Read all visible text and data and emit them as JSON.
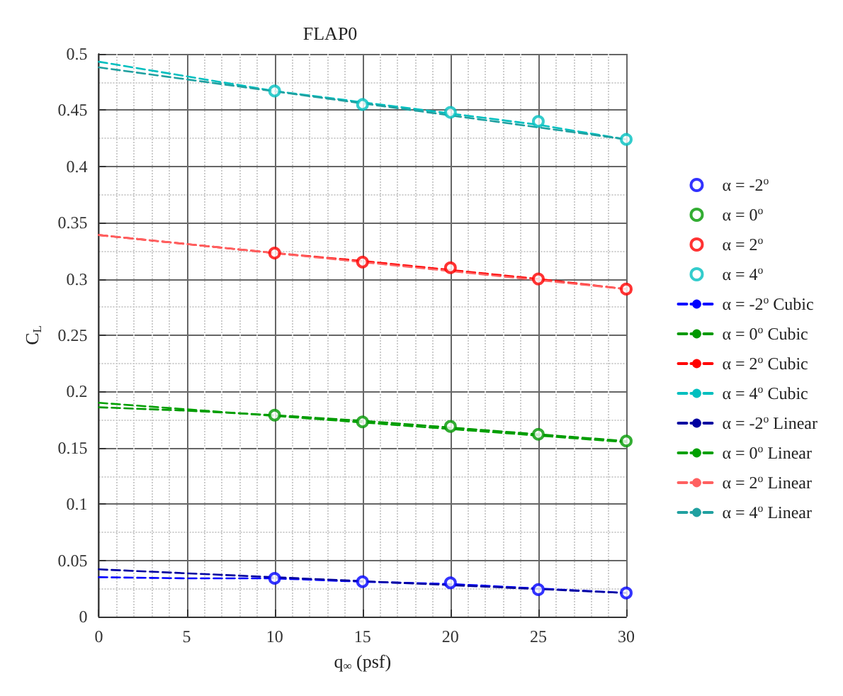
{
  "chart_data": {
    "type": "scatter",
    "title": "FLAP0",
    "xlabel": "q$_{∞}$ (psf)",
    "ylabel": "C$_{L}$",
    "xlim": [
      0,
      30
    ],
    "xticks": [
      0,
      5,
      10,
      15,
      20,
      25,
      30
    ],
    "ylim": [
      0,
      0.5
    ],
    "yticks": [
      0,
      0.05,
      0.1,
      0.15,
      0.2,
      0.25,
      0.3,
      0.35,
      0.4,
      0.45,
      0.5
    ],
    "grid": true,
    "legend": "right",
    "marker": "circle",
    "x": [
      10,
      15,
      20,
      25,
      30
    ],
    "series": [
      {
        "name": "α = -2$^{o}$",
        "color": "#0000ff",
        "values": [
          0.034,
          0.031,
          0.03,
          0.024,
          0.021
        ]
      },
      {
        "name": "α = 0$^{o}$",
        "color": "#009900",
        "values": [
          0.179,
          0.173,
          0.169,
          0.162,
          0.156
        ]
      },
      {
        "name": "α = 2$^{o}$",
        "color": "#ff0000",
        "values": [
          0.323,
          0.315,
          0.31,
          0.3,
          0.291
        ]
      },
      {
        "name": "α = 4$^{o}$",
        "color": "#00bfbf",
        "values": [
          0.467,
          0.455,
          0.448,
          0.44,
          0.424
        ]
      },
      {
        "name": "α = -2$^{o}$ Cubic",
        "type": "line",
        "line_style": "dashed",
        "marker": "none",
        "color": "#0000ff",
        "x": [
          0,
          5,
          10,
          15,
          20,
          25,
          30
        ],
        "values": [
          0.035,
          0.034,
          0.034,
          0.031,
          0.029,
          0.025,
          0.021
        ]
      },
      {
        "name": "α = 0$^{o}$ Cubic",
        "type": "line",
        "line_style": "dashed",
        "marker": "none",
        "color": "#009900",
        "x": [
          0,
          5,
          10,
          15,
          20,
          25,
          30
        ],
        "values": [
          0.186,
          0.183,
          0.179,
          0.174,
          0.168,
          0.162,
          0.156
        ]
      },
      {
        "name": "α = 2$^{o}$ Cubic",
        "type": "line",
        "line_style": "dashed",
        "marker": "none",
        "color": "#ff0000",
        "x": [
          0,
          5,
          10,
          15,
          20,
          25,
          30
        ],
        "values": [
          0.339,
          0.331,
          0.323,
          0.316,
          0.308,
          0.3,
          0.291
        ]
      },
      {
        "name": "α = 4$^{o}$ Cubic",
        "type": "line",
        "line_style": "dashed",
        "marker": "none",
        "color": "#00bfbf",
        "x": [
          0,
          5,
          10,
          15,
          20,
          25,
          30
        ],
        "values": [
          0.493,
          0.48,
          0.467,
          0.457,
          0.447,
          0.437,
          0.424
        ]
      },
      {
        "name": "α = -2$^{o}$ Linear",
        "type": "line",
        "line_style": "dashed",
        "marker": "none",
        "color": "#0000a0",
        "x": [
          0,
          30
        ],
        "values": [
          0.042,
          0.021
        ]
      },
      {
        "name": "α = 0$^{o}$ Linear",
        "type": "line",
        "line_style": "dashed",
        "marker": "none",
        "color": "#00a000",
        "x": [
          0,
          30
        ],
        "values": [
          0.19,
          0.155
        ]
      },
      {
        "name": "α = 2$^{o}$ Linear",
        "type": "line",
        "line_style": "dashed",
        "marker": "none",
        "color": "#ff6060",
        "x": [
          0,
          30
        ],
        "values": [
          0.339,
          0.291
        ]
      },
      {
        "name": "α = 4$^{o}$ Linear",
        "type": "line",
        "line_style": "dashed",
        "marker": "none",
        "color": "#20a0a0",
        "x": [
          0,
          30
        ],
        "values": [
          0.488,
          0.424
        ]
      }
    ]
  }
}
